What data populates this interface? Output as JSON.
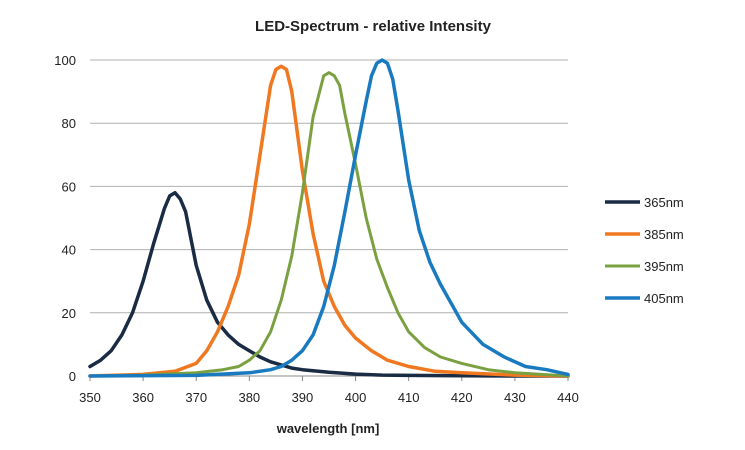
{
  "chart_data": {
    "type": "line",
    "title": "LED-Spectrum - relative Intensity",
    "xlabel": "wavelength [nm]",
    "ylabel": "",
    "xlim": [
      350,
      440
    ],
    "ylim": [
      0,
      100
    ],
    "xticks": [
      350,
      360,
      370,
      380,
      390,
      400,
      410,
      420,
      430,
      440
    ],
    "yticks": [
      0,
      20,
      40,
      60,
      80,
      100
    ],
    "grid": "horizontal",
    "legend_position": "right",
    "series": [
      {
        "name": "365nm",
        "color": "#1a2b44",
        "x": [
          350,
          352,
          354,
          356,
          358,
          360,
          362,
          364,
          365,
          366,
          367,
          368,
          370,
          372,
          374,
          376,
          378,
          380,
          382,
          384,
          386,
          388,
          390,
          395,
          400,
          405,
          410,
          420,
          430,
          440
        ],
        "y": [
          3,
          5,
          8,
          13,
          20,
          30,
          42,
          53,
          57,
          58,
          56,
          52,
          35,
          24,
          17,
          13,
          10,
          8,
          6,
          4.5,
          3.5,
          2.5,
          2,
          1.2,
          0.6,
          0.3,
          0.2,
          0.1,
          0,
          0
        ]
      },
      {
        "name": "385nm",
        "color": "#f07820",
        "x": [
          350,
          360,
          366,
          370,
          372,
          374,
          376,
          378,
          380,
          382,
          384,
          385,
          386,
          387,
          388,
          390,
          392,
          394,
          396,
          398,
          400,
          403,
          406,
          410,
          415,
          420,
          430,
          440
        ],
        "y": [
          0,
          0.5,
          1.5,
          4,
          8,
          14,
          22,
          32,
          48,
          70,
          92,
          97,
          98,
          97,
          90,
          65,
          45,
          30,
          22,
          16,
          12,
          8,
          5,
          3,
          1.5,
          1,
          0.3,
          0
        ]
      },
      {
        "name": "395nm",
        "color": "#7aa040",
        "x": [
          350,
          360,
          370,
          375,
          378,
          380,
          382,
          384,
          386,
          388,
          390,
          392,
          394,
          395,
          396,
          397,
          398,
          400,
          402,
          404,
          406,
          408,
          410,
          413,
          416,
          420,
          425,
          430,
          440
        ],
        "y": [
          0,
          0.3,
          1,
          2,
          3,
          5,
          8,
          14,
          24,
          38,
          58,
          82,
          95,
          96,
          95,
          92,
          83,
          67,
          50,
          37,
          28,
          20,
          14,
          9,
          6,
          4,
          2,
          1,
          0
        ]
      },
      {
        "name": "405nm",
        "color": "#1a7ac0",
        "x": [
          350,
          370,
          380,
          384,
          386,
          388,
          390,
          392,
          394,
          396,
          398,
          400,
          402,
          403,
          404,
          405,
          406,
          407,
          408,
          410,
          412,
          414,
          416,
          418,
          420,
          424,
          428,
          432,
          436,
          440
        ],
        "y": [
          0,
          0.2,
          1,
          2,
          3,
          5,
          8,
          13,
          22,
          35,
          52,
          70,
          87,
          95,
          99,
          100,
          99,
          94,
          84,
          62,
          46,
          36,
          29,
          23,
          17,
          10,
          6,
          3,
          2,
          0.5
        ]
      }
    ]
  }
}
